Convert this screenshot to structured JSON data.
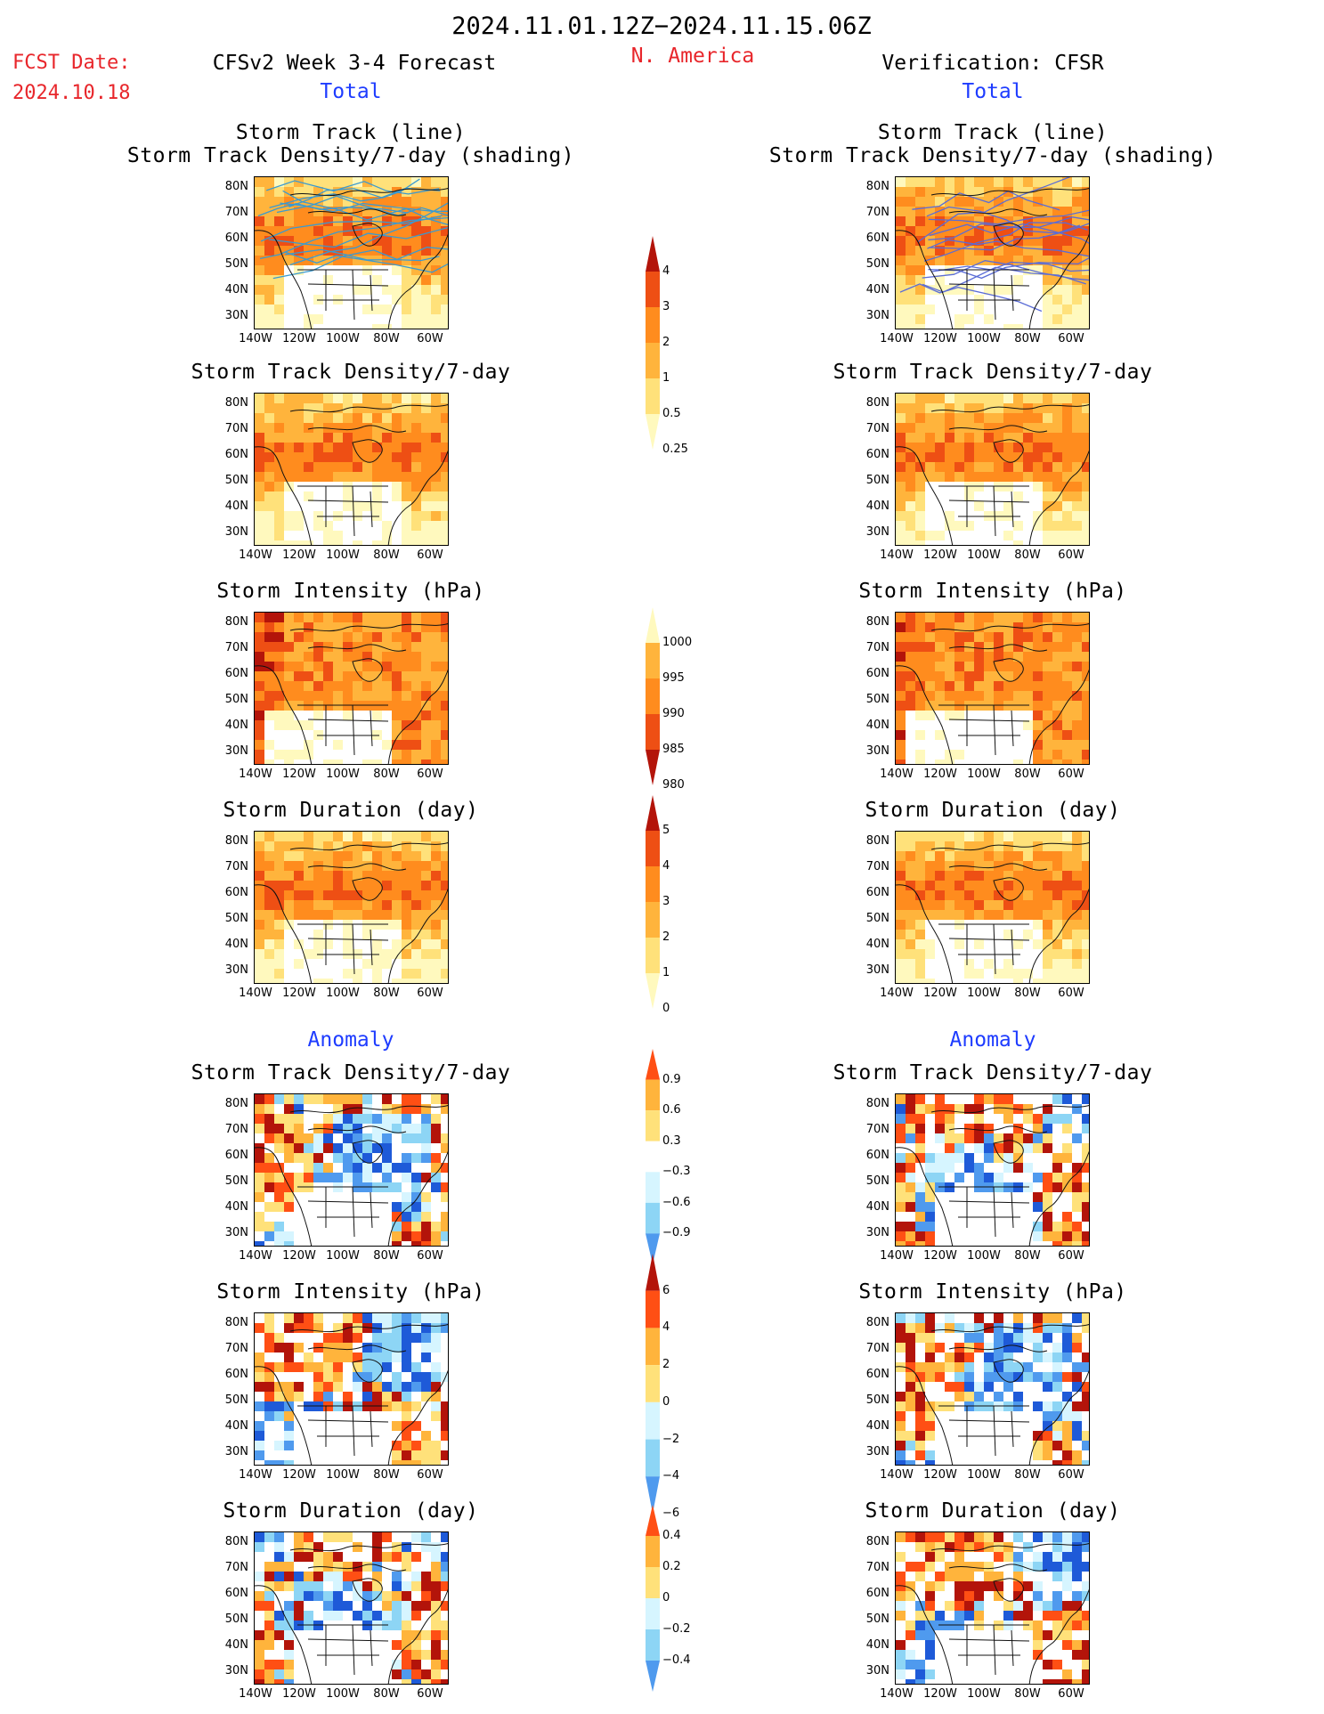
{
  "header": {
    "date_range": "2024.11.01.12Z−2024.11.15.06Z",
    "fcst_label": "FCST Date:",
    "fcst_date": "2024.10.18",
    "model": "CFSv2 Week 3-4 Forecast",
    "region": "N. America",
    "verification": "Verification: CFSR",
    "section_total": "Total",
    "section_anomaly": "Anomaly"
  },
  "axes": {
    "y_ticks": [
      "80N",
      "70N",
      "60N",
      "50N",
      "40N",
      "30N"
    ],
    "x_ticks": [
      "140W",
      "120W",
      "100W",
      "80W",
      "60W"
    ]
  },
  "colors": {
    "total_density": [
      "#fff9be",
      "#ffe17a",
      "#ffb43c",
      "#ff8c1e",
      "#ee4f14",
      "#b3140a"
    ],
    "total_intensity": [
      "#fff9be",
      "#ffb43c",
      "#ff8c1e",
      "#ee4f14",
      "#b3140a"
    ],
    "anomaly_warm": [
      "#ffe17a",
      "#ffb43c",
      "#ff4f14",
      "#b3140a"
    ],
    "anomaly_cool": [
      "#d6f5ff",
      "#8dd5f5",
      "#4f9aee",
      "#1e5ad8"
    ]
  },
  "chart_data": [
    {
      "type": "heatmap",
      "column": "forecast",
      "title": "Storm Track (line)",
      "subtitle": "Storm Track Density/7-day (shading)",
      "scheme": "total_density",
      "overlay": "storm-track-lines"
    },
    {
      "type": "heatmap",
      "column": "verification",
      "title": "Storm Track (line)",
      "subtitle": "Storm Track Density/7-day (shading)",
      "scheme": "total_density",
      "overlay": "storm-track-lines"
    },
    {
      "type": "heatmap",
      "column": "forecast",
      "title": "Storm Track Density/7-day",
      "scheme": "total_density"
    },
    {
      "type": "heatmap",
      "column": "verification",
      "title": "Storm Track Density/7-day",
      "scheme": "total_density"
    },
    {
      "type": "heatmap",
      "column": "forecast",
      "title": "Storm Intensity (hPa)",
      "scheme": "total_intensity"
    },
    {
      "type": "heatmap",
      "column": "verification",
      "title": "Storm Intensity (hPa)",
      "scheme": "total_intensity"
    },
    {
      "type": "heatmap",
      "column": "forecast",
      "title": "Storm Duration (day)",
      "scheme": "total_density"
    },
    {
      "type": "heatmap",
      "column": "verification",
      "title": "Storm Duration (day)",
      "scheme": "total_density"
    },
    {
      "type": "heatmap",
      "column": "forecast",
      "title": "Storm Track Density/7-day",
      "scheme": "anomaly"
    },
    {
      "type": "heatmap",
      "column": "verification",
      "title": "Storm Track Density/7-day",
      "scheme": "anomaly"
    },
    {
      "type": "heatmap",
      "column": "forecast",
      "title": "Storm Intensity (hPa)",
      "scheme": "anomaly"
    },
    {
      "type": "heatmap",
      "column": "verification",
      "title": "Storm Intensity (hPa)",
      "scheme": "anomaly"
    },
    {
      "type": "heatmap",
      "column": "forecast",
      "title": "Storm Duration (day)",
      "scheme": "anomaly"
    },
    {
      "type": "heatmap",
      "column": "verification",
      "title": "Storm Duration (day)",
      "scheme": "anomaly"
    }
  ],
  "colorbars": [
    {
      "name": "density-total",
      "labels": [
        "4",
        "3",
        "2",
        "1",
        "0.5",
        "0.25"
      ],
      "colors": [
        "#b3140a",
        "#ee4f14",
        "#ff8c1e",
        "#ffb43c",
        "#ffe17a",
        "#fff9be"
      ]
    },
    {
      "name": "intensity-total",
      "labels": [
        "1000",
        "995",
        "990",
        "985",
        "980"
      ],
      "colors": [
        "#fff9be",
        "#ffb43c",
        "#ff8c1e",
        "#ee4f14",
        "#b3140a"
      ]
    },
    {
      "name": "duration-total",
      "labels": [
        "5",
        "4",
        "3",
        "2",
        "1",
        "0"
      ],
      "colors": [
        "#b3140a",
        "#ee4f14",
        "#ff8c1e",
        "#ffb43c",
        "#ffe17a",
        "#fff9be"
      ]
    },
    {
      "name": "density-anomaly",
      "labels": [
        "0.9",
        "0.6",
        "0.3",
        "−0.3",
        "−0.6",
        "−0.9"
      ],
      "colors": [
        "#ff4f14",
        "#ffb43c",
        "#ffe17a",
        "#ffffff",
        "#d6f5ff",
        "#8dd5f5",
        "#4f9aee"
      ]
    },
    {
      "name": "intensity-anomaly",
      "labels": [
        "6",
        "4",
        "2",
        "0",
        "−2",
        "−4",
        "−6"
      ],
      "colors": [
        "#b3140a",
        "#ff4f14",
        "#ffb43c",
        "#ffe17a",
        "#d6f5ff",
        "#8dd5f5",
        "#4f9aee"
      ]
    },
    {
      "name": "duration-anomaly",
      "labels": [
        "0.4",
        "0.2",
        "0",
        "−0.2",
        "−0.4"
      ],
      "colors": [
        "#ff4f14",
        "#ffb43c",
        "#ffe17a",
        "#d6f5ff",
        "#8dd5f5",
        "#4f9aee"
      ]
    }
  ]
}
